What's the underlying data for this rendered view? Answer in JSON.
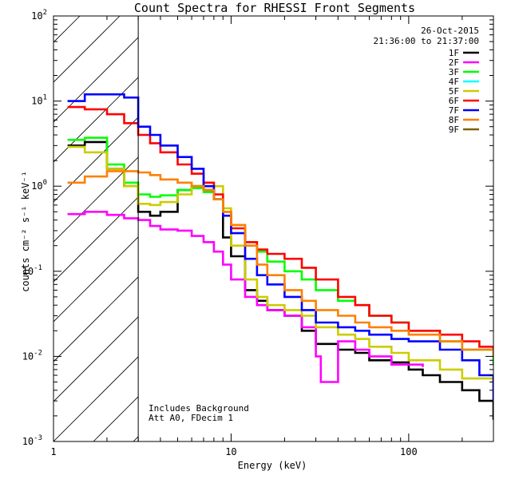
{
  "chart_data": {
    "type": "line",
    "title": "Count Spectra for RHESSI Front Segments",
    "xlabel": "Energy (keV)",
    "ylabel": "counts cm⁻² s⁻¹ keV⁻¹",
    "xscale": "log",
    "yscale": "log",
    "xlim": [
      1.0,
      300.0
    ],
    "ylim": [
      0.001,
      100.0
    ],
    "x_tick_labels": [
      {
        "value": 1,
        "label": "1"
      },
      {
        "value": 10,
        "label": "10"
      },
      {
        "value": 100,
        "label": "100"
      }
    ],
    "y_tick_labels": [
      {
        "value": 0.001,
        "base": "10",
        "exp": "-3"
      },
      {
        "value": 0.01,
        "base": "10",
        "exp": "-2"
      },
      {
        "value": 0.1,
        "base": "10",
        "exp": "-1"
      },
      {
        "value": 1,
        "base": "10",
        "exp": "0"
      },
      {
        "value": 10,
        "base": "10",
        "exp": "1"
      },
      {
        "value": 100,
        "base": "10",
        "exp": "2"
      }
    ],
    "hatched_region_xmax": 3.0,
    "date": "26-Oct-2015",
    "time_range": "21:36:00 to 21:37:00",
    "annotations": [
      "Includes Background",
      "Att A0, FDecim 1"
    ],
    "legend_position": "top-right",
    "series": [
      {
        "name": "1F",
        "color": "#000000",
        "x": [
          1.2,
          1.5,
          2.0,
          2.5,
          3.0,
          3.5,
          4.0,
          5.0,
          6.0,
          7.0,
          8.0,
          9.0,
          10.0,
          12.0,
          14.0,
          16.0,
          20.0,
          25.0,
          30.0,
          40.0,
          50.0,
          60.0,
          80.0,
          100.0,
          120.0,
          150.0,
          200.0,
          250.0,
          300.0
        ],
        "values": [
          3.0,
          3.3,
          1.6,
          1.0,
          0.5,
          0.45,
          0.5,
          0.9,
          1.0,
          0.9,
          0.7,
          0.25,
          0.15,
          0.06,
          0.045,
          0.035,
          0.03,
          0.02,
          0.014,
          0.012,
          0.011,
          0.009,
          0.0085,
          0.007,
          0.006,
          0.005,
          0.004,
          0.003,
          0.0018
        ]
      },
      {
        "name": "2F",
        "color": "#ff00ff",
        "x": [
          1.2,
          1.5,
          2.0,
          2.5,
          3.0,
          3.5,
          4.0,
          5.0,
          6.0,
          7.0,
          8.0,
          9.0,
          10.0,
          12.0,
          14.0,
          16.0,
          20.0,
          25.0,
          30.0,
          32.0,
          40.0,
          50.0,
          60.0,
          80.0,
          100.0,
          120.0
        ],
        "values": [
          0.47,
          0.5,
          0.46,
          0.42,
          0.4,
          0.34,
          0.31,
          0.3,
          0.26,
          0.22,
          0.17,
          0.12,
          0.08,
          0.05,
          0.04,
          0.035,
          0.03,
          0.022,
          0.01,
          0.005,
          0.015,
          0.012,
          0.01,
          0.008,
          0.008,
          0.0075
        ]
      },
      {
        "name": "3F",
        "color": "#00ff00",
        "x": [
          1.2,
          1.5,
          2.0,
          2.5,
          3.0,
          3.5,
          4.0,
          5.0,
          6.0,
          7.0,
          8.0,
          9.0,
          10.0,
          12.0,
          14.0,
          16.0,
          20.0,
          25.0,
          30.0,
          40.0,
          50.0,
          60.0,
          80.0,
          100.0,
          150.0,
          200.0,
          300.0
        ],
        "values": [
          3.5,
          3.7,
          1.8,
          1.1,
          0.8,
          0.75,
          0.78,
          0.9,
          0.95,
          0.85,
          0.7,
          0.5,
          0.35,
          0.22,
          0.17,
          0.13,
          0.1,
          0.08,
          0.06,
          0.045,
          0.04,
          0.03,
          0.025,
          0.02,
          0.015,
          0.012,
          0.008
        ]
      },
      {
        "name": "4F",
        "color": "#00ffff",
        "x": [],
        "values": []
      },
      {
        "name": "5F",
        "color": "#cccc00",
        "x": [
          1.2,
          1.5,
          2.0,
          2.5,
          3.0,
          3.5,
          4.0,
          5.0,
          6.0,
          7.0,
          8.0,
          9.0,
          10.0,
          12.0,
          14.0,
          16.0,
          20.0,
          25.0,
          30.0,
          40.0,
          50.0,
          60.0,
          80.0,
          100.0,
          150.0,
          200.0,
          300.0
        ],
        "values": [
          2.9,
          2.5,
          1.6,
          1.0,
          0.62,
          0.6,
          0.65,
          0.8,
          1.0,
          1.1,
          1.0,
          0.55,
          0.2,
          0.08,
          0.05,
          0.04,
          0.035,
          0.03,
          0.022,
          0.018,
          0.016,
          0.013,
          0.011,
          0.009,
          0.007,
          0.0055,
          0.004
        ]
      },
      {
        "name": "6F",
        "color": "#ff0000",
        "x": [
          1.2,
          1.5,
          2.0,
          2.5,
          3.0,
          3.5,
          4.0,
          5.0,
          6.0,
          7.0,
          8.0,
          9.0,
          10.0,
          12.0,
          14.0,
          16.0,
          20.0,
          25.0,
          30.0,
          40.0,
          50.0,
          60.0,
          80.0,
          100.0,
          150.0,
          200.0,
          250.0,
          300.0
        ],
        "values": [
          8.5,
          8.0,
          7.0,
          5.5,
          4.0,
          3.2,
          2.5,
          1.8,
          1.4,
          1.1,
          0.8,
          0.5,
          0.32,
          0.22,
          0.18,
          0.16,
          0.14,
          0.11,
          0.08,
          0.05,
          0.04,
          0.03,
          0.025,
          0.02,
          0.018,
          0.015,
          0.013,
          0.012
        ]
      },
      {
        "name": "7F",
        "color": "#0000ff",
        "x": [
          1.2,
          1.5,
          2.0,
          2.5,
          3.0,
          3.5,
          4.0,
          5.0,
          6.0,
          7.0,
          8.0,
          9.0,
          10.0,
          12.0,
          14.0,
          16.0,
          20.0,
          25.0,
          30.0,
          40.0,
          50.0,
          60.0,
          80.0,
          100.0,
          150.0,
          200.0,
          250.0,
          300.0
        ],
        "values": [
          10.0,
          12.0,
          12.0,
          11.0,
          5.0,
          4.0,
          3.0,
          2.2,
          1.6,
          1.0,
          0.7,
          0.45,
          0.28,
          0.14,
          0.09,
          0.07,
          0.05,
          0.035,
          0.025,
          0.022,
          0.02,
          0.018,
          0.016,
          0.015,
          0.012,
          0.009,
          0.006,
          0.003
        ]
      },
      {
        "name": "8F",
        "color": "#ff8000",
        "x": [
          1.2,
          1.5,
          2.0,
          2.5,
          3.0,
          3.5,
          4.0,
          5.0,
          6.0,
          7.0,
          8.0,
          9.0,
          10.0,
          12.0,
          14.0,
          16.0,
          20.0,
          25.0,
          30.0,
          40.0,
          50.0,
          60.0,
          80.0,
          100.0,
          150.0,
          200.0,
          300.0
        ],
        "values": [
          1.1,
          1.3,
          1.5,
          1.5,
          1.45,
          1.35,
          1.2,
          1.1,
          1.0,
          0.9,
          0.7,
          0.5,
          0.35,
          0.2,
          0.12,
          0.09,
          0.06,
          0.045,
          0.035,
          0.03,
          0.025,
          0.022,
          0.02,
          0.018,
          0.015,
          0.012,
          0.01
        ]
      },
      {
        "name": "9F",
        "color": "#806000",
        "x": [],
        "values": []
      }
    ]
  }
}
